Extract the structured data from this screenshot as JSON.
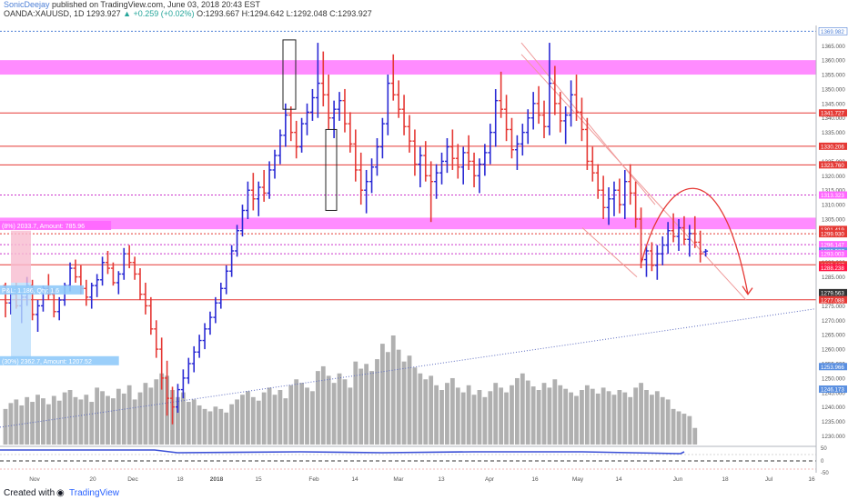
{
  "header": {
    "author": "SonicDeejay",
    "published": " published on TradingView.com, June 03, 2018 20:43 EST",
    "symbol": "OANDA:XAUUSD, 1D",
    "ohlc": "1293.927 ",
    "change": "▲ +0.259 (+0.02%)",
    "ohlc_rest": " O:1293.667 H:1294.642 L:1292.048 C:1293.927"
  },
  "footer": {
    "created_with": "Created with",
    "brand": "TradingView"
  },
  "colors": {
    "up": "#2a2ad4",
    "down": "#e53935",
    "zone": "#ff66ff",
    "resistance": "#e53935",
    "volume": "#b0b0b0",
    "axis_label_red": "#e53935",
    "axis_label_blue": "#4d7fd6"
  },
  "chart_data": {
    "type": "candlestick",
    "symbol": "OANDA:XAUUSD",
    "interval": "1D",
    "y_axis": {
      "ylim": [
        1227,
        1372
      ],
      "tick_labels": [
        "1365.000",
        "1360.000",
        "1355.000",
        "1350.000",
        "1345.000",
        "1340.000",
        "1335.000",
        "1330.000",
        "1325.000",
        "1320.000",
        "1315.000",
        "1310.000",
        "1305.000",
        "1300.000",
        "1295.000",
        "1290.000",
        "1285.000",
        "1280.000",
        "1275.000",
        "1270.000",
        "1265.000",
        "1260.000",
        "1255.000",
        "1250.000",
        "1245.000",
        "1240.000",
        "1235.000",
        "1230.000"
      ]
    },
    "x_axis": {
      "tick_labels": [
        "Nov",
        "20",
        "Dec",
        "18",
        "2018",
        "15",
        "Feb",
        "14",
        "Mar",
        "13",
        "Apr",
        "16",
        "May",
        "14",
        "Jun",
        "18",
        "Jul",
        "16"
      ]
    },
    "price_labels": [
      {
        "value": 1369.982,
        "text": "1369.982",
        "style": "blue-outline"
      },
      {
        "value": 1341.727,
        "text": "1341.727",
        "style": "red"
      },
      {
        "value": 1330.206,
        "text": "1330.206",
        "style": "red"
      },
      {
        "value": 1323.76,
        "text": "1323.760",
        "style": "red"
      },
      {
        "value": 1313.323,
        "text": "1313.323",
        "style": "pink"
      },
      {
        "value": 1301.419,
        "text": "1301.419",
        "style": "red"
      },
      {
        "value": 1299.93,
        "text": "1299.930",
        "style": "red"
      },
      {
        "value": 1296.147,
        "text": "1296.147",
        "style": "pink"
      },
      {
        "value": 1293.927,
        "text": "1293.927",
        "style": "blue"
      },
      {
        "value": 1293.003,
        "text": "1293.003",
        "style": "pink"
      },
      {
        "value": 1289.187,
        "text": "1289.187",
        "style": "red"
      },
      {
        "value": 1288.238,
        "text": "1288.238",
        "style": "pinkred"
      },
      {
        "value": 1279.563,
        "text": "1279.563",
        "style": "dark"
      },
      {
        "value": 1277.088,
        "text": "1277.088",
        "style": "red"
      },
      {
        "value": 1253.966,
        "text": "1253.966",
        "style": "blue"
      },
      {
        "value": 1246.173,
        "text": "1246.173",
        "style": "blue"
      }
    ],
    "zones": [
      {
        "from": 1355,
        "to": 1360,
        "color": "#ff66ff"
      },
      {
        "from": 1301.5,
        "to": 1305.5,
        "color": "#ff66ff"
      }
    ],
    "horizontal_lines": [
      {
        "value": 1341.727,
        "color": "#e53935",
        "style": "solid"
      },
      {
        "value": 1330.206,
        "color": "#e53935",
        "style": "solid"
      },
      {
        "value": 1323.76,
        "color": "#e53935",
        "style": "solid"
      },
      {
        "value": 1313.323,
        "color": "#cc33cc",
        "style": "dotted"
      },
      {
        "value": 1299.93,
        "color": "#e53935",
        "style": "dotted"
      },
      {
        "value": 1296.147,
        "color": "#cc33cc",
        "style": "dotted"
      },
      {
        "value": 1293.003,
        "color": "#cc33cc",
        "style": "dotted"
      },
      {
        "value": 1289.187,
        "color": "#e53935",
        "style": "solid"
      },
      {
        "value": 1277.088,
        "color": "#e53935",
        "style": "solid"
      },
      {
        "value": 1369.982,
        "color": "#4d7fd6",
        "style": "dotted"
      }
    ],
    "position_tool": {
      "upper_text": "(8%) 2033.7, Amount: 785.96",
      "middle_text": "P&L: 1.186, Qty: 1.6",
      "lower_text": "(30%) 2362.7, Amount: 1207.52"
    },
    "oscillator": {
      "levels": [
        "50",
        "0",
        "-50"
      ],
      "label": "-1"
    },
    "candles": [
      [
        1282,
        1283,
        1271,
        1276
      ],
      [
        1276,
        1281,
        1272,
        1279
      ],
      [
        1279,
        1283,
        1274,
        1275
      ],
      [
        1275,
        1280,
        1269,
        1278
      ],
      [
        1278,
        1285,
        1275,
        1282
      ],
      [
        1282,
        1284,
        1270,
        1272
      ],
      [
        1272,
        1277,
        1266,
        1275
      ],
      [
        1275,
        1282,
        1273,
        1281
      ],
      [
        1281,
        1286,
        1277,
        1279
      ],
      [
        1279,
        1281,
        1271,
        1273
      ],
      [
        1273,
        1278,
        1270,
        1277
      ],
      [
        1277,
        1283,
        1275,
        1282
      ],
      [
        1282,
        1290,
        1280,
        1288
      ],
      [
        1288,
        1291,
        1283,
        1285
      ],
      [
        1285,
        1289,
        1279,
        1281
      ],
      [
        1281,
        1284,
        1275,
        1278
      ],
      [
        1278,
        1283,
        1274,
        1282
      ],
      [
        1282,
        1286,
        1278,
        1284
      ],
      [
        1284,
        1292,
        1282,
        1290
      ],
      [
        1290,
        1294,
        1286,
        1288
      ],
      [
        1288,
        1290,
        1282,
        1283
      ],
      [
        1283,
        1287,
        1279,
        1286
      ],
      [
        1286,
        1295,
        1284,
        1293
      ],
      [
        1293,
        1296,
        1288,
        1290
      ],
      [
        1290,
        1292,
        1284,
        1286
      ],
      [
        1286,
        1288,
        1277,
        1279
      ],
      [
        1279,
        1283,
        1272,
        1275
      ],
      [
        1275,
        1278,
        1265,
        1267
      ],
      [
        1267,
        1270,
        1257,
        1260
      ],
      [
        1260,
        1264,
        1246,
        1250
      ],
      [
        1250,
        1256,
        1237,
        1243
      ],
      [
        1243,
        1247,
        1234,
        1240
      ],
      [
        1240,
        1248,
        1238,
        1246
      ],
      [
        1246,
        1253,
        1243,
        1250
      ],
      [
        1250,
        1257,
        1248,
        1255
      ],
      [
        1255,
        1261,
        1252,
        1259
      ],
      [
        1259,
        1265,
        1257,
        1263
      ],
      [
        1263,
        1269,
        1260,
        1267
      ],
      [
        1267,
        1273,
        1265,
        1271
      ],
      [
        1271,
        1278,
        1269,
        1276
      ],
      [
        1276,
        1283,
        1274,
        1281
      ],
      [
        1281,
        1289,
        1279,
        1287
      ],
      [
        1287,
        1296,
        1285,
        1294
      ],
      [
        1294,
        1303,
        1292,
        1301
      ],
      [
        1301,
        1310,
        1299,
        1308
      ],
      [
        1308,
        1318,
        1305,
        1315
      ],
      [
        1315,
        1321,
        1308,
        1312
      ],
      [
        1312,
        1318,
        1306,
        1316
      ],
      [
        1316,
        1322,
        1311,
        1314
      ],
      [
        1314,
        1325,
        1312,
        1322
      ],
      [
        1322,
        1329,
        1319,
        1327
      ],
      [
        1327,
        1336,
        1324,
        1334
      ],
      [
        1334,
        1345,
        1330,
        1341
      ],
      [
        1341,
        1344,
        1332,
        1335
      ],
      [
        1335,
        1339,
        1326,
        1330
      ],
      [
        1330,
        1340,
        1328,
        1338
      ],
      [
        1338,
        1345,
        1334,
        1342
      ],
      [
        1342,
        1350,
        1339,
        1347
      ],
      [
        1347,
        1366,
        1340,
        1352
      ],
      [
        1352,
        1363,
        1344,
        1348
      ],
      [
        1348,
        1355,
        1336,
        1340
      ],
      [
        1340,
        1346,
        1333,
        1343
      ],
      [
        1343,
        1349,
        1339,
        1346
      ],
      [
        1346,
        1350,
        1335,
        1338
      ],
      [
        1338,
        1342,
        1328,
        1331
      ],
      [
        1331,
        1336,
        1318,
        1322
      ],
      [
        1322,
        1328,
        1310,
        1315
      ],
      [
        1315,
        1322,
        1307,
        1318
      ],
      [
        1318,
        1326,
        1314,
        1323
      ],
      [
        1323,
        1333,
        1320,
        1330
      ],
      [
        1330,
        1340,
        1326,
        1338
      ],
      [
        1338,
        1355,
        1334,
        1352
      ],
      [
        1352,
        1362,
        1346,
        1348
      ],
      [
        1348,
        1353,
        1340,
        1343
      ],
      [
        1343,
        1348,
        1334,
        1337
      ],
      [
        1337,
        1341,
        1328,
        1332
      ],
      [
        1332,
        1336,
        1320,
        1324
      ],
      [
        1324,
        1330,
        1316,
        1327
      ],
      [
        1327,
        1332,
        1318,
        1320
      ],
      [
        1320,
        1325,
        1304,
        1318
      ],
      [
        1318,
        1324,
        1312,
        1321
      ],
      [
        1321,
        1328,
        1317,
        1325
      ],
      [
        1325,
        1333,
        1321,
        1330
      ],
      [
        1330,
        1336,
        1322,
        1326
      ],
      [
        1326,
        1331,
        1319,
        1323
      ],
      [
        1323,
        1330,
        1317,
        1328
      ],
      [
        1328,
        1334,
        1322,
        1325
      ],
      [
        1325,
        1328,
        1316,
        1320
      ],
      [
        1320,
        1326,
        1314,
        1324
      ],
      [
        1324,
        1331,
        1320,
        1328
      ],
      [
        1328,
        1338,
        1324,
        1335
      ],
      [
        1335,
        1350,
        1330,
        1346
      ],
      [
        1346,
        1356,
        1340,
        1343
      ],
      [
        1343,
        1348,
        1332,
        1336
      ],
      [
        1336,
        1340,
        1326,
        1329
      ],
      [
        1329,
        1334,
        1322,
        1331
      ],
      [
        1331,
        1338,
        1327,
        1335
      ],
      [
        1335,
        1343,
        1331,
        1340
      ],
      [
        1340,
        1349,
        1336,
        1345
      ],
      [
        1345,
        1351,
        1338,
        1341
      ],
      [
        1341,
        1346,
        1333,
        1337
      ],
      [
        1337,
        1366,
        1334,
        1352
      ],
      [
        1352,
        1358,
        1341,
        1345
      ],
      [
        1345,
        1349,
        1335,
        1339
      ],
      [
        1339,
        1344,
        1331,
        1341
      ],
      [
        1341,
        1353,
        1337,
        1348
      ],
      [
        1348,
        1355,
        1339,
        1342
      ],
      [
        1342,
        1347,
        1332,
        1336
      ],
      [
        1336,
        1340,
        1322,
        1325
      ],
      [
        1325,
        1330,
        1318,
        1321
      ],
      [
        1321,
        1324,
        1312,
        1315
      ],
      [
        1315,
        1320,
        1305,
        1309
      ],
      [
        1309,
        1316,
        1303,
        1312
      ],
      [
        1312,
        1318,
        1306,
        1315
      ],
      [
        1315,
        1319,
        1307,
        1310
      ],
      [
        1310,
        1322,
        1305,
        1318
      ],
      [
        1318,
        1324,
        1310,
        1314
      ],
      [
        1314,
        1318,
        1302,
        1305
      ],
      [
        1305,
        1309,
        1288,
        1291
      ],
      [
        1291,
        1296,
        1285,
        1294
      ],
      [
        1294,
        1297,
        1287,
        1289
      ],
      [
        1289,
        1296,
        1284,
        1293
      ],
      [
        1293,
        1299,
        1289,
        1296
      ],
      [
        1296,
        1304,
        1293,
        1301
      ],
      [
        1301,
        1307,
        1297,
        1299
      ],
      [
        1299,
        1305,
        1294,
        1302
      ],
      [
        1302,
        1306,
        1296,
        1298
      ],
      [
        1298,
        1303,
        1292,
        1300
      ],
      [
        1300,
        1306,
        1295,
        1297
      ],
      [
        1297,
        1301,
        1290,
        1293
      ],
      [
        1293.667,
        1294.642,
        1292.048,
        1293.927
      ]
    ],
    "volume": [
      30,
      35,
      38,
      33,
      40,
      36,
      42,
      39,
      34,
      41,
      37,
      44,
      46,
      40,
      38,
      42,
      36,
      48,
      45,
      41,
      39,
      47,
      43,
      50,
      38,
      44,
      52,
      48,
      55,
      60,
      58,
      46,
      40,
      44,
      36,
      38,
      33,
      30,
      28,
      32,
      30,
      27,
      34,
      38,
      42,
      45,
      40,
      37,
      44,
      48,
      42,
      46,
      39,
      50,
      55,
      52,
      48,
      45,
      62,
      66,
      58,
      52,
      60,
      55,
      48,
      70,
      64,
      68,
      62,
      72,
      85,
      78,
      92,
      80,
      70,
      75,
      65,
      60,
      55,
      58,
      50,
      46,
      52,
      56,
      48,
      44,
      50,
      42,
      46,
      40,
      45,
      52,
      48,
      44,
      50,
      56,
      60,
      54,
      49,
      46,
      52,
      48,
      55,
      50,
      47,
      44,
      41,
      46,
      50,
      47,
      43,
      48,
      45,
      42,
      46,
      44,
      40,
      48,
      52,
      46,
      42,
      45,
      40,
      38,
      30,
      28,
      26,
      24,
      14
    ]
  }
}
